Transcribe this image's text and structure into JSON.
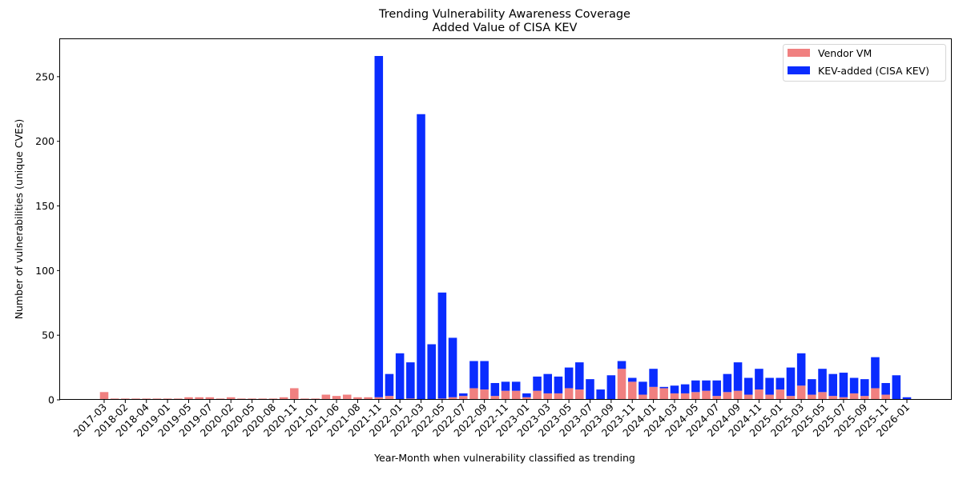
{
  "chart_data": {
    "type": "bar",
    "stacked": true,
    "title": "Trending Vulnerability Awareness Coverage",
    "subtitle": "Added Value of CISA KEV",
    "xlabel": "Year-Month when vulnerability classified as trending",
    "ylabel": "Number of vulnerabilities (unique CVEs)",
    "ylim": [
      0,
      279
    ],
    "yticks": [
      0,
      50,
      100,
      150,
      200,
      250
    ],
    "legend_position": "top-right",
    "grid": false,
    "tick_labels": [
      "2017-03",
      "2018-02",
      "2018-04",
      "2019-01",
      "2019-05",
      "2019-07",
      "2020-02",
      "2020-05",
      "2020-08",
      "2020-11",
      "2021-01",
      "2021-06",
      "2021-08",
      "2021-11",
      "2022-01",
      "2022-03",
      "2022-05",
      "2022-07",
      "2022-09",
      "2022-11",
      "2023-01",
      "2023-03",
      "2023-05",
      "2023-07",
      "2023-09",
      "2023-11",
      "2024-01",
      "2024-03",
      "2024-05",
      "2024-07",
      "2024-09",
      "2024-11",
      "2025-01",
      "2025-03",
      "2025-05",
      "2025-07",
      "2025-09",
      "2025-11",
      "2026-01"
    ],
    "tick_every": 2,
    "bar_count": 77,
    "series": [
      {
        "name": "Vendor VM",
        "color": "#f08080",
        "values": [
          6,
          1,
          1,
          1,
          1,
          1,
          1,
          1,
          2,
          2,
          2,
          1,
          2,
          1,
          1,
          1,
          1,
          2,
          9,
          1,
          1,
          4,
          3,
          4,
          2,
          2,
          2,
          3,
          0,
          1,
          0,
          0,
          1,
          2,
          3,
          9,
          8,
          3,
          7,
          7,
          2,
          7,
          5,
          5,
          9,
          8,
          0,
          0,
          0,
          24,
          14,
          4,
          10,
          9,
          5,
          5,
          6,
          7,
          3,
          6,
          7,
          4,
          8,
          4,
          8,
          3,
          11,
          4,
          6,
          3,
          2,
          5,
          3,
          9,
          4,
          0,
          0
        ]
      },
      {
        "name": "KEV-added (CISA KEV)",
        "color": "#0a2cff",
        "values": [
          0,
          0,
          0,
          0,
          0,
          0,
          0,
          0,
          0,
          0,
          0,
          0,
          0,
          0,
          0,
          0,
          0,
          0,
          0,
          0,
          0,
          0,
          0,
          0,
          0,
          0,
          264,
          17,
          36,
          28,
          221,
          43,
          82,
          46,
          2,
          21,
          22,
          10,
          7,
          7,
          3,
          11,
          15,
          13,
          16,
          21,
          16,
          8,
          19,
          6,
          3,
          10,
          14,
          1,
          6,
          7,
          9,
          8,
          12,
          14,
          22,
          13,
          16,
          13,
          9,
          22,
          25,
          12,
          18,
          17,
          19,
          12,
          13,
          24,
          9,
          19,
          2
        ]
      }
    ]
  }
}
